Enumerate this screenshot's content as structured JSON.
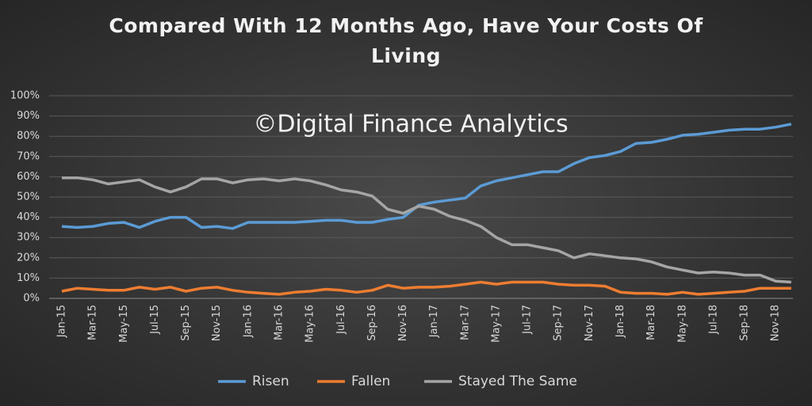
{
  "chart_data": {
    "type": "line",
    "title": "Compared With 12 Months Ago, Have Your Costs Of Living",
    "annotation": "©Digital Finance Analytics",
    "categories": [
      "Jan-15",
      null,
      "Mar-15",
      null,
      "May-15",
      null,
      "Jul-15",
      null,
      "Sep-15",
      null,
      "Nov-15",
      null,
      "Jan-16",
      null,
      "Mar-16",
      null,
      "May-16",
      null,
      "Jul-16",
      null,
      "Sep-16",
      null,
      "Nov-16",
      null,
      "Jan-17",
      null,
      "Mar-17",
      null,
      "May-17",
      null,
      "Jul-17",
      null,
      "Sep-17",
      null,
      "Nov-17",
      null,
      "Jan-18",
      null,
      "Mar-18",
      null,
      "May-18",
      null,
      "Jul-18",
      null,
      "Sep-18",
      null,
      "Nov-18",
      null
    ],
    "series": [
      {
        "name": "Risen",
        "color": "#5b9bd5",
        "values": [
          35.5,
          35,
          35.5,
          37,
          37.5,
          35,
          38,
          40,
          40,
          35,
          35.5,
          34.5,
          37.5,
          37.5,
          37.5,
          37.5,
          38,
          38.5,
          38.5,
          37.5,
          37.5,
          39,
          40,
          46,
          47.5,
          48.5,
          49.5,
          55.5,
          58,
          59.5,
          61,
          62.5,
          62.5,
          66.5,
          69.5,
          70.5,
          72.5,
          76.5,
          77,
          78.5,
          80.5,
          81,
          82,
          83,
          83.5,
          83.5,
          84.5,
          86
        ]
      },
      {
        "name": "Fallen",
        "color": "#ed7d31",
        "values": [
          3.5,
          5,
          4.5,
          4,
          4,
          5.5,
          4.5,
          5.5,
          3.5,
          5,
          5.5,
          4,
          3,
          2.5,
          2,
          3,
          3.5,
          4.5,
          4,
          3,
          4,
          6.5,
          5,
          5.5,
          5.5,
          6,
          7,
          8,
          7,
          8,
          8,
          8,
          7,
          6.5,
          6.5,
          6,
          3,
          2.5,
          2.5,
          2,
          3,
          2,
          2.5,
          3,
          3.5,
          5,
          5,
          5
        ]
      },
      {
        "name": "Stayed The Same",
        "color": "#a5a5a5",
        "values": [
          59.5,
          59.5,
          58.5,
          56.5,
          57.5,
          58.5,
          55,
          52.5,
          55,
          59,
          59,
          57,
          58.5,
          59,
          58,
          59,
          58,
          56,
          53.5,
          52.5,
          50.5,
          44,
          42,
          45.5,
          44,
          40.5,
          38.5,
          35.5,
          30,
          26.5,
          26.5,
          25,
          23.5,
          20,
          22,
          21,
          20,
          19.5,
          18,
          15.5,
          14,
          12.5,
          13,
          12.5,
          11.5,
          11.5,
          8.5,
          8
        ]
      }
    ],
    "ylim": [
      0,
      100
    ],
    "yticks": [
      {
        "value": 0,
        "label": "0%"
      },
      {
        "value": 10,
        "label": "10%"
      },
      {
        "value": 20,
        "label": "20%"
      },
      {
        "value": 30,
        "label": "30%"
      },
      {
        "value": 40,
        "label": "40%"
      },
      {
        "value": 50,
        "label": "50%"
      },
      {
        "value": 60,
        "label": "60%"
      },
      {
        "value": 70,
        "label": "70%"
      },
      {
        "value": 80,
        "label": "80%"
      },
      {
        "value": 90,
        "label": "90%"
      },
      {
        "value": 100,
        "label": "100%"
      }
    ],
    "grid": true,
    "legend": "bottom"
  }
}
